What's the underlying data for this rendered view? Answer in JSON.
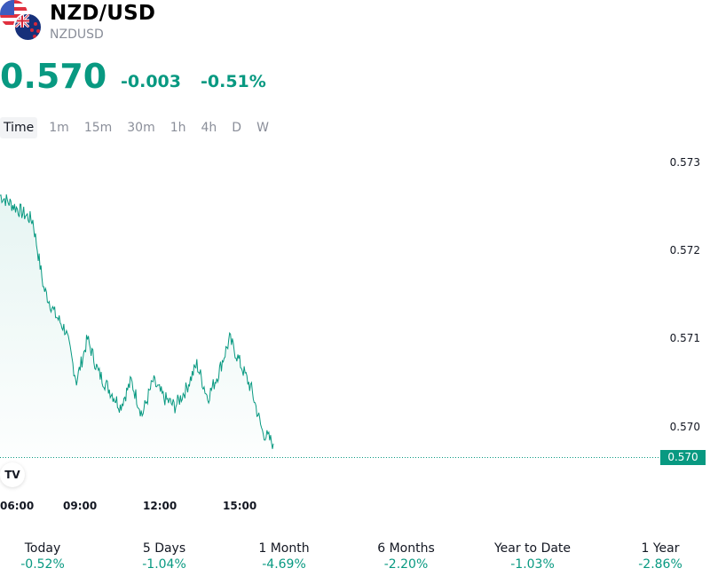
{
  "header": {
    "title": "NZD/USD",
    "ticker": "NZDUSD",
    "icons": [
      "us-flag-icon",
      "nz-flag-icon"
    ]
  },
  "quote": {
    "price": "0.570",
    "change": "-0.003",
    "change_pct": "-0.51%",
    "color": "#089981"
  },
  "tabs": [
    {
      "label": "Time",
      "active": true
    },
    {
      "label": "1m"
    },
    {
      "label": "15m"
    },
    {
      "label": "30m"
    },
    {
      "label": "1h"
    },
    {
      "label": "4h"
    },
    {
      "label": "D"
    },
    {
      "label": "W"
    }
  ],
  "chart_data": {
    "type": "area",
    "line_color": "#089981",
    "x_ticks": [
      "06:00",
      "09:00",
      "12:00",
      "15:00"
    ],
    "y_ticks": [
      "0.573",
      "0.572",
      "0.571",
      "0.570"
    ],
    "ylim": [
      0.5696,
      0.5731
    ],
    "last_price_label": "0.570",
    "last_price": 0.56976,
    "x": [
      "05:00",
      "05:30",
      "06:00",
      "06:30",
      "07:00",
      "07:30",
      "08:00",
      "08:30",
      "09:00",
      "09:30",
      "10:00",
      "10:30",
      "11:00",
      "11:30",
      "12:00",
      "12:30",
      "13:00",
      "13:30",
      "14:00",
      "14:30",
      "15:00",
      "15:30",
      "16:00",
      "16:30",
      "17:00",
      "17:15"
    ],
    "values": [
      0.5727,
      0.5726,
      0.5725,
      0.5724,
      0.5716,
      0.5713,
      0.5711,
      0.5705,
      0.571,
      0.5706,
      0.5704,
      0.5702,
      0.5705,
      0.5701,
      0.5705,
      0.5703,
      0.5702,
      0.5704,
      0.5707,
      0.5703,
      0.5706,
      0.571,
      0.5707,
      0.5704,
      0.5699,
      0.56976
    ]
  },
  "performance": [
    {
      "label": "Today",
      "value": "-0.52%"
    },
    {
      "label": "5 Days",
      "value": "-1.04%"
    },
    {
      "label": "1 Month",
      "value": "-4.69%"
    },
    {
      "label": "6 Months",
      "value": "-2.20%"
    },
    {
      "label": "Year to Date",
      "value": "-1.03%"
    },
    {
      "label": "1 Year",
      "value": "-2.86%"
    }
  ],
  "logo": {
    "text": "TV",
    "icon": "tradingview-logo-icon"
  }
}
